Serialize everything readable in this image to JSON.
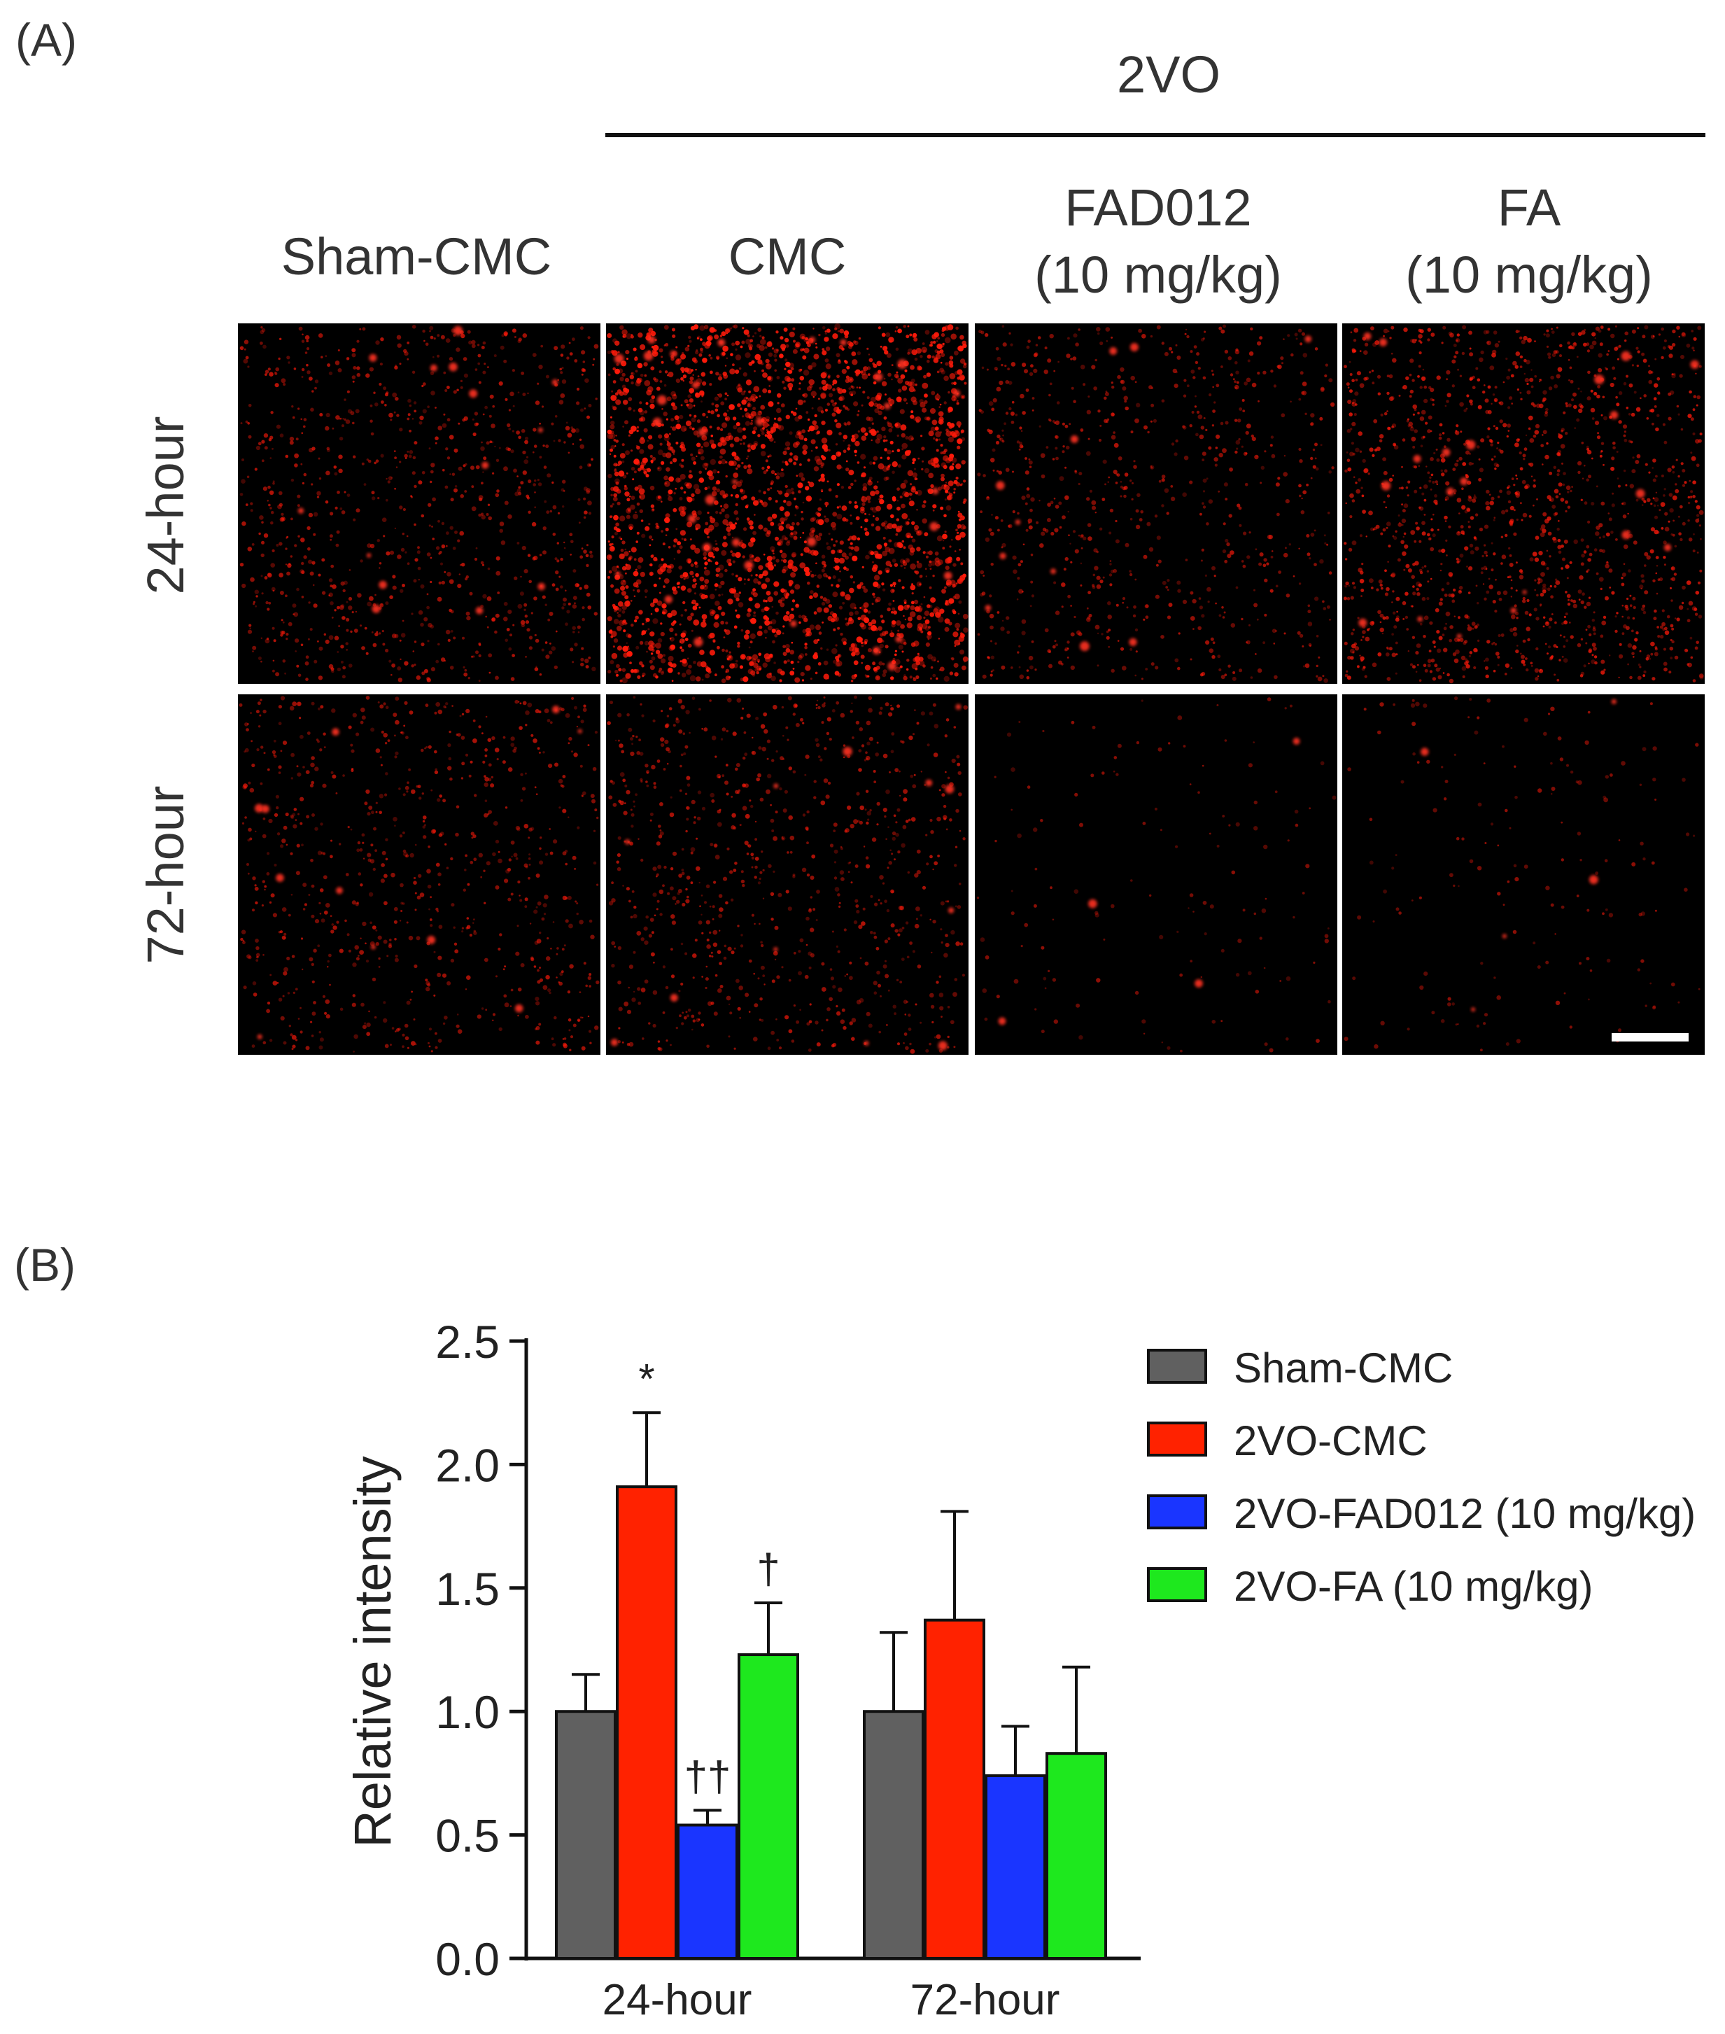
{
  "panel_a": {
    "label": "(A)",
    "group_label": "2VO",
    "columns": [
      {
        "line1": "Sham-CMC",
        "line2": ""
      },
      {
        "line1": "CMC",
        "line2": ""
      },
      {
        "line1": "FAD012",
        "line2": "(10 mg/kg)"
      },
      {
        "line1": "FA",
        "line2": "(10 mg/kg)"
      }
    ],
    "rows": [
      "24-hour",
      "72-hour"
    ],
    "image_color": "#ff1a0a"
  },
  "panel_b": {
    "label": "(B)"
  },
  "chart_data": {
    "type": "bar",
    "categories": [
      "24-hour",
      "72-hour"
    ],
    "ylabel": "Relative intensity",
    "xlabel": "",
    "ylim": [
      0,
      2.5
    ],
    "yticks": [
      "0.0",
      "0.5",
      "1.0",
      "1.5",
      "2.0",
      "2.5"
    ],
    "legend_position": "top-right",
    "series": [
      {
        "name": "Sham-CMC",
        "color": "#606060",
        "values": [
          1.0,
          1.0
        ],
        "errors": [
          0.15,
          0.32
        ],
        "annotations": [
          "",
          ""
        ]
      },
      {
        "name": "2VO-CMC",
        "color": "#ff2200",
        "values": [
          1.91,
          1.37
        ],
        "errors": [
          0.3,
          0.44
        ],
        "annotations": [
          "*",
          ""
        ]
      },
      {
        "name": "2VO-FAD012 (10 mg/kg)",
        "color": "#1a35ff",
        "values": [
          0.54,
          0.74
        ],
        "errors": [
          0.06,
          0.2
        ],
        "annotations": [
          "††",
          ""
        ]
      },
      {
        "name": "2VO-FA (10 mg/kg)",
        "color": "#1ee81e",
        "values": [
          1.23,
          0.83
        ],
        "errors": [
          0.21,
          0.35
        ],
        "annotations": [
          "†",
          ""
        ]
      }
    ]
  }
}
